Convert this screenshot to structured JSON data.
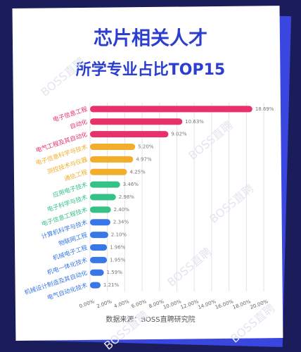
{
  "chart_data": {
    "type": "bar",
    "orientation": "horizontal",
    "title": "芯片相关人才",
    "subtitle": "所学专业占比TOP15",
    "source": "数据来源：BOSS直聘研究院",
    "watermark": "BOSS直聘",
    "categories": [
      "电子信息工程",
      "自动化",
      "电气工程及其自动化",
      "电子信息科学与技术",
      "测控技术与仪器",
      "通信工程",
      "应用电子技术",
      "电子科学与技术",
      "电子信息工程技术",
      "计算机科学与技术",
      "物联网工程",
      "机械电子工程",
      "机电一体化技术",
      "机械设计制造及其自动化",
      "电气自动化技术"
    ],
    "values": [
      18.69,
      10.63,
      9.02,
      5.2,
      4.97,
      4.25,
      3.46,
      2.98,
      2.4,
      2.34,
      2.1,
      1.96,
      1.95,
      1.59,
      1.21
    ],
    "value_labels": [
      "18.69%",
      "10.63%",
      "9.02%",
      "5.20%",
      "4.97%",
      "4.25%",
      "3.46%",
      "2.98%",
      "2.40%",
      "2.34%",
      "2.10%",
      "1.96%",
      "1.95%",
      "1.59%",
      "1.21%"
    ],
    "colors": [
      "#e8306a",
      "#e8306a",
      "#e8306a",
      "#f2ad2a",
      "#f2ad2a",
      "#f2ad2a",
      "#34c286",
      "#34c286",
      "#34c286",
      "#3778e6",
      "#3778e6",
      "#3778e6",
      "#3778e6",
      "#3778e6",
      "#3778e6"
    ],
    "xlim": [
      0,
      20
    ],
    "xticks": [
      {
        "value": 0,
        "label": "0.00%"
      },
      {
        "value": 2,
        "label": "2.00%"
      },
      {
        "value": 4,
        "label": "4.00%"
      },
      {
        "value": 6,
        "label": "6.00%"
      },
      {
        "value": 8,
        "label": "8.00%"
      },
      {
        "value": 10,
        "label": "10.00%"
      },
      {
        "value": 12,
        "label": "12.00%"
      },
      {
        "value": 14,
        "label": "14.00%"
      },
      {
        "value": 16,
        "label": "16.00%"
      },
      {
        "value": 18,
        "label": "18.00%"
      },
      {
        "value": 20,
        "label": "20.00%"
      }
    ],
    "grid": true
  }
}
